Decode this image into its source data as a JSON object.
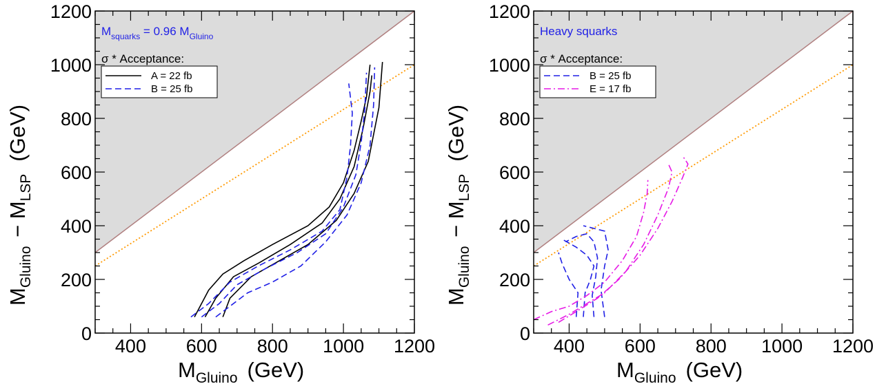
{
  "chart_data": [
    {
      "type": "line",
      "xlabel": {
        "main": "M",
        "sub": "Gluino",
        "unit": "(GeV)"
      },
      "ylabel": {
        "main1": "M",
        "sub1": "Gluino",
        "mid": " − M",
        "sub2": "LSP",
        "unit": "(GeV)"
      },
      "xlim": [
        300,
        1200
      ],
      "ylim": [
        0,
        1200
      ],
      "xticks": [
        "400",
        "600",
        "800",
        "1000",
        "1200"
      ],
      "yticks": [
        "0",
        "200",
        "400",
        "600",
        "800",
        "1000",
        "1200"
      ],
      "annotation": {
        "main": "M",
        "sub1": "squarks",
        "mid": " = 0.96 M",
        "sub2": "Gluino"
      },
      "legend_title": "σ * Acceptance:",
      "legend": [
        {
          "label": "A = 22 fb",
          "color": "#000000",
          "dash": "solid"
        },
        {
          "label": "B = 25 fb",
          "color": "#1f1fe6",
          "dash": "dashed"
        }
      ],
      "kinematic_limit": {
        "color": "#b08080",
        "shade": "#dcdcdc",
        "points": [
          [
            300,
            300
          ],
          [
            1200,
            1200
          ]
        ]
      },
      "reference_line": {
        "color": "#ff9900",
        "style": "dotted",
        "points": [
          [
            300,
            250
          ],
          [
            1200,
            1000
          ]
        ]
      },
      "series": [
        {
          "label": "A = 22 fb",
          "color": "#000000",
          "dash": "solid",
          "points": [
            [
              580,
              60
            ],
            [
              620,
              160
            ],
            [
              660,
              220
            ],
            [
              720,
              270
            ],
            [
              800,
              330
            ],
            [
              900,
              400
            ],
            [
              960,
              470
            ],
            [
              1000,
              560
            ],
            [
              1030,
              680
            ],
            [
              1050,
              790
            ],
            [
              1065,
              880
            ],
            [
              1075,
              1000
            ]
          ]
        },
        {
          "label": "A = 22 fb",
          "color": "#000000",
          "dash": "solid",
          "points": [
            [
              610,
              60
            ],
            [
              640,
              130
            ],
            [
              690,
              210
            ],
            [
              760,
              260
            ],
            [
              850,
              330
            ],
            [
              940,
              410
            ],
            [
              990,
              500
            ],
            [
              1030,
              620
            ],
            [
              1055,
              760
            ],
            [
              1075,
              900
            ],
            [
              1080,
              960
            ]
          ]
        },
        {
          "label": "A = 22 fb",
          "color": "#000000",
          "dash": "solid",
          "points": [
            [
              660,
              60
            ],
            [
              680,
              130
            ],
            [
              740,
              210
            ],
            [
              820,
              270
            ],
            [
              900,
              330
            ],
            [
              980,
              420
            ],
            [
              1030,
              520
            ],
            [
              1070,
              640
            ],
            [
              1100,
              840
            ],
            [
              1110,
              1010
            ]
          ]
        },
        {
          "label": "B = 25 fb",
          "color": "#1f1fe6",
          "dash": "dashed",
          "points": [
            [
              570,
              60
            ],
            [
              620,
              110
            ],
            [
              680,
              190
            ],
            [
              760,
              250
            ],
            [
              850,
              310
            ],
            [
              940,
              380
            ],
            [
              990,
              460
            ],
            [
              1010,
              580
            ],
            [
              1020,
              700
            ],
            [
              1025,
              820
            ],
            [
              1015,
              930
            ]
          ]
        },
        {
          "label": "B = 25 fb",
          "color": "#1f1fe6",
          "dash": "dashed",
          "points": [
            [
              600,
              60
            ],
            [
              650,
              110
            ],
            [
              700,
              180
            ],
            [
              780,
              240
            ],
            [
              870,
              300
            ],
            [
              950,
              370
            ],
            [
              1000,
              470
            ],
            [
              1035,
              590
            ],
            [
              1050,
              710
            ],
            [
              1060,
              830
            ],
            [
              1065,
              970
            ]
          ]
        },
        {
          "label": "B = 25 fb",
          "color": "#1f1fe6",
          "dash": "dashed",
          "points": [
            [
              640,
              60
            ],
            [
              680,
              100
            ],
            [
              730,
              150
            ],
            [
              800,
              190
            ],
            [
              880,
              250
            ],
            [
              950,
              340
            ],
            [
              1010,
              440
            ],
            [
              1050,
              560
            ],
            [
              1075,
              700
            ],
            [
              1085,
              850
            ],
            [
              1088,
              990
            ]
          ]
        }
      ]
    },
    {
      "type": "line",
      "xlabel": {
        "main": "M",
        "sub": "Gluino",
        "unit": "(GeV)"
      },
      "ylabel": {
        "main1": "M",
        "sub1": "Gluino",
        "mid": " − M",
        "sub2": "LSP",
        "unit": "(GeV)"
      },
      "xlim": [
        300,
        1200
      ],
      "ylim": [
        0,
        1200
      ],
      "xticks": [
        "400",
        "600",
        "800",
        "1000",
        "1200"
      ],
      "yticks": [
        "0",
        "200",
        "400",
        "600",
        "800",
        "1000",
        "1200"
      ],
      "annotation": {
        "main": "Heavy squarks"
      },
      "legend_title": "σ * Acceptance:",
      "legend": [
        {
          "label": "B = 25 fb",
          "color": "#1f1fe6",
          "dash": "dashed"
        },
        {
          "label": "E = 17 fb",
          "color": "#e619e6",
          "dash": "dashdot"
        }
      ],
      "kinematic_limit": {
        "color": "#b08080",
        "shade": "#dcdcdc",
        "points": [
          [
            300,
            300
          ],
          [
            1200,
            1200
          ]
        ]
      },
      "reference_line": {
        "color": "#ff9900",
        "style": "dotted",
        "points": [
          [
            300,
            250
          ],
          [
            1200,
            1000
          ]
        ]
      },
      "series": [
        {
          "label": "B = 25 fb",
          "color": "#1f1fe6",
          "dash": "dashed",
          "points": [
            [
              420,
              60
            ],
            [
              425,
              150
            ],
            [
              400,
              200
            ],
            [
              380,
              260
            ],
            [
              370,
              300
            ]
          ]
        },
        {
          "label": "B = 25 fb",
          "color": "#1f1fe6",
          "dash": "dashed",
          "points": [
            [
              440,
              60
            ],
            [
              445,
              150
            ],
            [
              460,
              200
            ],
            [
              470,
              250
            ],
            [
              450,
              290
            ],
            [
              420,
              320
            ],
            [
              380,
              350
            ]
          ]
        },
        {
          "label": "B = 25 fb",
          "color": "#1f1fe6",
          "dash": "dashed",
          "points": [
            [
              470,
              60
            ],
            [
              465,
              140
            ],
            [
              475,
              210
            ],
            [
              480,
              280
            ],
            [
              470,
              340
            ],
            [
              450,
              370
            ],
            [
              420,
              360
            ],
            [
              390,
              340
            ]
          ]
        },
        {
          "label": "B = 25 fb",
          "color": "#1f1fe6",
          "dash": "dashed",
          "points": [
            [
              500,
              60
            ],
            [
              490,
              160
            ],
            [
              500,
              250
            ],
            [
              510,
              310
            ],
            [
              500,
              380
            ],
            [
              470,
              390
            ],
            [
              440,
              400
            ]
          ]
        },
        {
          "label": "E = 17 fb",
          "color": "#e619e6",
          "dash": "dashdot",
          "points": [
            [
              300,
              50
            ],
            [
              350,
              80
            ],
            [
              400,
              100
            ],
            [
              450,
              140
            ],
            [
              500,
              190
            ],
            [
              550,
              270
            ],
            [
              590,
              360
            ],
            [
              610,
              450
            ],
            [
              620,
              520
            ],
            [
              622,
              570
            ]
          ]
        },
        {
          "label": "E = 17 fb",
          "color": "#e619e6",
          "dash": "dashdot",
          "points": [
            [
              340,
              30
            ],
            [
              400,
              70
            ],
            [
              450,
              110
            ],
            [
              500,
              150
            ],
            [
              560,
              230
            ],
            [
              610,
              330
            ],
            [
              650,
              440
            ],
            [
              680,
              540
            ],
            [
              690,
              600
            ],
            [
              680,
              630
            ]
          ]
        },
        {
          "label": "E = 17 fb",
          "color": "#e619e6",
          "dash": "dashdot",
          "points": [
            [
              370,
              40
            ],
            [
              420,
              80
            ],
            [
              480,
              130
            ],
            [
              540,
              200
            ],
            [
              600,
              290
            ],
            [
              650,
              390
            ],
            [
              690,
              490
            ],
            [
              720,
              580
            ],
            [
              735,
              630
            ],
            [
              720,
              660
            ]
          ]
        }
      ]
    }
  ]
}
